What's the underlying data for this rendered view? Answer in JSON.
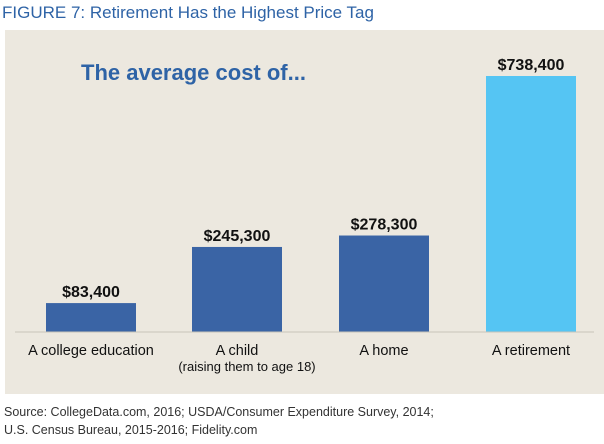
{
  "figure_title": "FIGURE 7: Retirement Has the Highest Price Tag",
  "source": {
    "line1": "Source: CollegeData.com, 2016; USDA/Consumer Expenditure Survey, 2014;",
    "line2": "U.S. Census Bureau, 2015-2016; Fidelity.com"
  },
  "colors": {
    "panel_background": "#ece8df",
    "bar_dark": "#3a64a5",
    "bar_highlight": "#55c5f3",
    "heading": "#2e63a6",
    "text": "#111111"
  },
  "chart_data": {
    "type": "bar",
    "title": "The average cost of...",
    "xlabel": "",
    "ylabel": "",
    "ylim": [
      0,
      738400
    ],
    "grid": false,
    "categories": [
      "A college education",
      "A child",
      "A home",
      "A retirement"
    ],
    "category_sublabels": [
      "",
      "(raising them to age 18)",
      "",
      ""
    ],
    "values": [
      83400,
      245300,
      278300,
      738400
    ],
    "value_labels": [
      "$83,400",
      "$245,300",
      "$278,300",
      "$738,400"
    ],
    "highlight_index": 3
  }
}
